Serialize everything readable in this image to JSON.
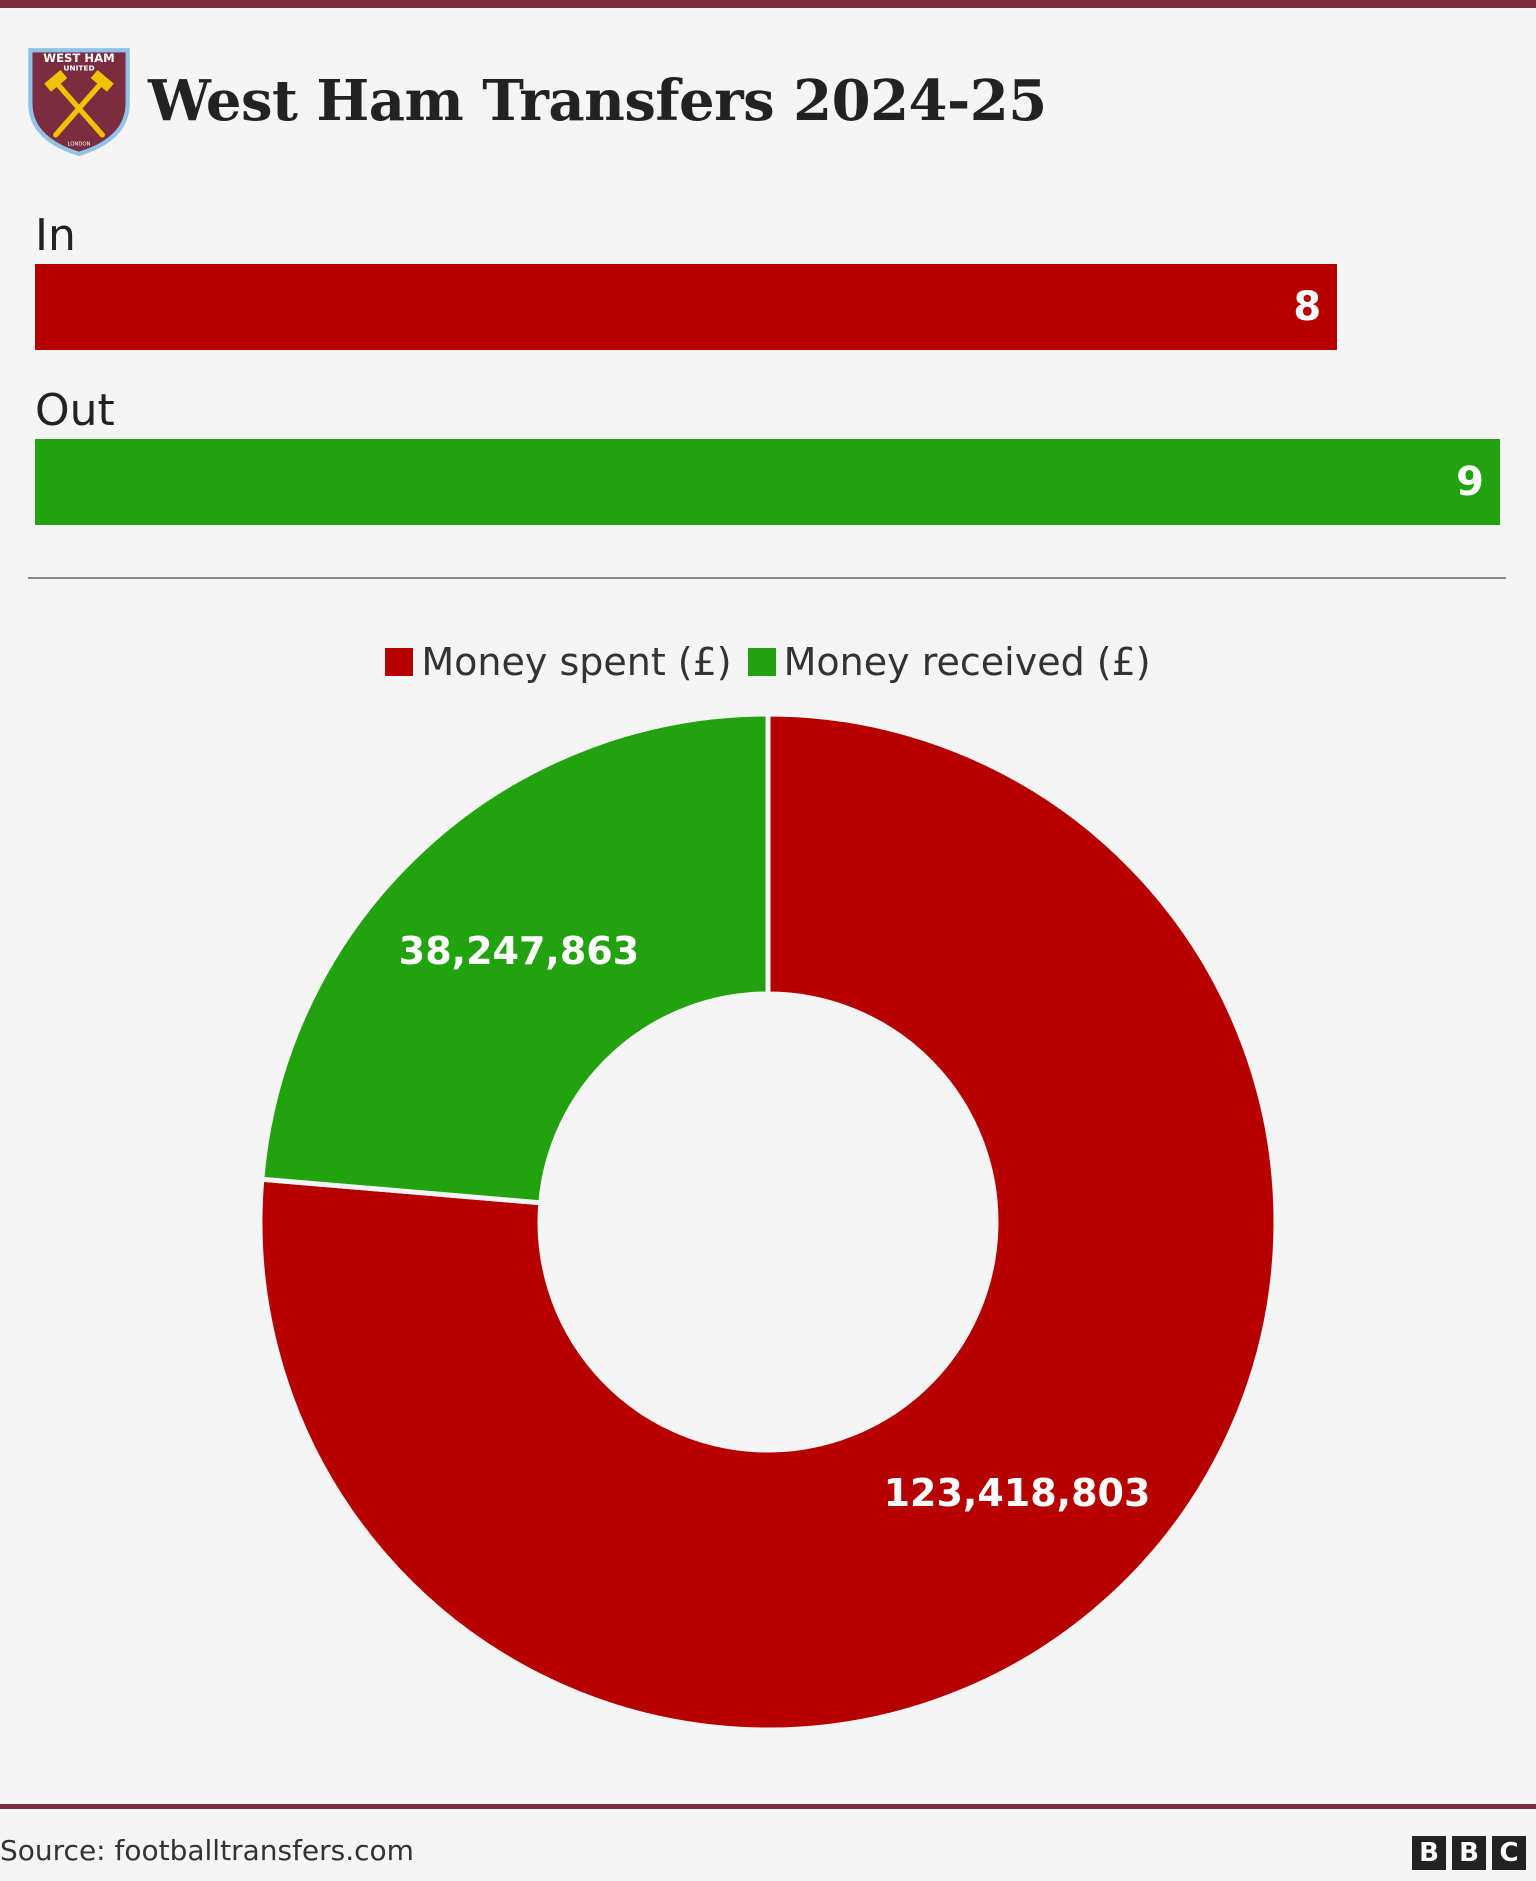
{
  "header": {
    "title": "West Ham Transfers 2024-25",
    "crest": {
      "top_text": "WEST HAM",
      "mid_text": "UNITED",
      "bottom_text": "LONDON"
    }
  },
  "chart_data": [
    {
      "type": "bar",
      "orientation": "horizontal",
      "categories": [
        "In",
        "Out"
      ],
      "values": [
        8,
        9
      ],
      "colors": [
        "#b60000",
        "#22a20e"
      ],
      "xlim": [
        0,
        9
      ]
    },
    {
      "type": "pie",
      "style": "donut",
      "categories": [
        "Money spent (£)",
        "Money received (£)"
      ],
      "values": [
        123418803,
        38247863
      ],
      "value_labels": [
        "123,418,803",
        "38,247,863"
      ],
      "colors": [
        "#b60000",
        "#22a20e"
      ],
      "legend_position": "top-center"
    }
  ],
  "footer": {
    "source": "Source: footballtransfers.com",
    "logo_letters": [
      "B",
      "B",
      "C"
    ]
  }
}
